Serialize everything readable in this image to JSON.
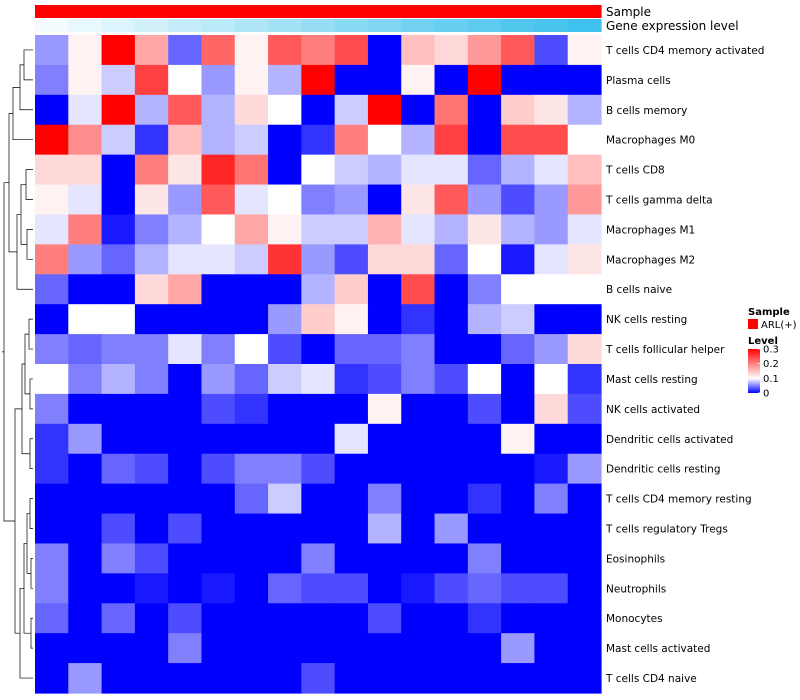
{
  "chart_data": {
    "type": "heatmap",
    "title": "",
    "annotation_rows": [
      "Sample",
      "Gene expression level"
    ],
    "rows": [
      "T cells CD4 memory activated",
      "Plasma cells",
      "B cells memory",
      "Macrophages M0",
      "T cells CD8",
      "T cells gamma delta",
      "Macrophages M1",
      "Macrophages M2",
      "B cells naive",
      "NK cells resting",
      "T cells follicular helper",
      "Mast cells resting",
      "NK cells activated",
      "Dendritic cells activated",
      "Dendritic cells resting",
      "T cells CD4 memory resting",
      "T cells regulatory  Tregs",
      "Eosinophils",
      "Neutrophils",
      "Monocytes",
      "Mast cells activated",
      "T cells CD4 naive"
    ],
    "values": [
      [
        0.06,
        0.11,
        0.3,
        0.17,
        0.04,
        0.22,
        0.11,
        0.23,
        0.2,
        0.24,
        0.0,
        0.15,
        0.13,
        0.18,
        0.23,
        0.03,
        0.11
      ],
      [
        0.05,
        0.11,
        0.08,
        0.25,
        0.1,
        0.06,
        0.11,
        0.07,
        0.3,
        0.0,
        0.0,
        0.11,
        0.0,
        0.3,
        0.0,
        0.0,
        0.0
      ],
      [
        0.0,
        0.09,
        0.3,
        0.07,
        0.23,
        0.07,
        0.13,
        0.1,
        0.0,
        0.08,
        0.3,
        0.0,
        0.21,
        0.0,
        0.14,
        0.12,
        0.07
      ],
      [
        0.3,
        0.19,
        0.08,
        0.02,
        0.15,
        0.07,
        0.08,
        0.0,
        0.02,
        0.2,
        0.1,
        0.07,
        0.25,
        0.0,
        0.24,
        0.24,
        0.1
      ],
      [
        0.13,
        0.13,
        0.0,
        0.2,
        0.12,
        0.27,
        0.21,
        0.0,
        0.1,
        0.08,
        0.07,
        0.09,
        0.09,
        0.04,
        0.07,
        0.09,
        0.15
      ],
      [
        0.11,
        0.09,
        0.0,
        0.12,
        0.06,
        0.23,
        0.09,
        0.1,
        0.05,
        0.06,
        0.0,
        0.12,
        0.23,
        0.06,
        0.03,
        0.06,
        0.18
      ],
      [
        0.09,
        0.2,
        0.01,
        0.05,
        0.07,
        0.1,
        0.17,
        0.11,
        0.08,
        0.08,
        0.16,
        0.09,
        0.07,
        0.12,
        0.07,
        0.06,
        0.09
      ],
      [
        0.2,
        0.06,
        0.04,
        0.07,
        0.09,
        0.09,
        0.08,
        0.26,
        0.06,
        0.03,
        0.13,
        0.13,
        0.04,
        0.1,
        0.01,
        0.09,
        0.12
      ],
      [
        0.04,
        0.0,
        0.0,
        0.13,
        0.17,
        0.0,
        0.0,
        0.0,
        0.07,
        0.14,
        0.0,
        0.24,
        0.0,
        0.05,
        0.1,
        0.1,
        0.1
      ],
      [
        0.0,
        0.1,
        0.1,
        0.0,
        0.0,
        0.0,
        0.0,
        0.06,
        0.14,
        0.11,
        0.0,
        0.02,
        0.0,
        0.07,
        0.08,
        0.0,
        0.0
      ],
      [
        0.05,
        0.04,
        0.05,
        0.05,
        0.09,
        0.05,
        0.1,
        0.03,
        0.0,
        0.04,
        0.04,
        0.05,
        0.0,
        0.0,
        0.04,
        0.06,
        0.13
      ],
      [
        0.1,
        0.05,
        0.07,
        0.05,
        0.0,
        0.06,
        0.04,
        0.08,
        0.09,
        0.02,
        0.03,
        0.05,
        0.03,
        0.1,
        0.0,
        0.1,
        0.02
      ],
      [
        0.05,
        0.0,
        0.0,
        0.0,
        0.0,
        0.03,
        0.02,
        0.0,
        0.0,
        0.0,
        0.11,
        0.0,
        0.0,
        0.03,
        0.0,
        0.13,
        0.03
      ],
      [
        0.02,
        0.06,
        0.0,
        0.0,
        0.0,
        0.0,
        0.0,
        0.0,
        0.0,
        0.09,
        0.0,
        0.0,
        0.0,
        0.0,
        0.11,
        0.0,
        0.0
      ],
      [
        0.02,
        0.0,
        0.04,
        0.03,
        0.0,
        0.03,
        0.05,
        0.05,
        0.03,
        0.0,
        0.0,
        0.0,
        0.0,
        0.0,
        0.0,
        0.01,
        0.06
      ],
      [
        0.0,
        0.0,
        0.0,
        0.0,
        0.0,
        0.0,
        0.04,
        0.08,
        0.0,
        0.0,
        0.05,
        0.0,
        0.0,
        0.02,
        0.0,
        0.05,
        0.0
      ],
      [
        0.0,
        0.0,
        0.03,
        0.0,
        0.03,
        0.0,
        0.0,
        0.0,
        0.0,
        0.0,
        0.07,
        0.0,
        0.06,
        0.0,
        0.0,
        0.0,
        0.0
      ],
      [
        0.05,
        0.0,
        0.05,
        0.03,
        0.0,
        0.0,
        0.0,
        0.0,
        0.05,
        0.0,
        0.0,
        0.0,
        0.0,
        0.05,
        0.0,
        0.0,
        0.0
      ],
      [
        0.05,
        0.0,
        0.0,
        0.01,
        0.0,
        0.01,
        0.0,
        0.04,
        0.03,
        0.03,
        0.0,
        0.01,
        0.03,
        0.04,
        0.03,
        0.03,
        0.0
      ],
      [
        0.04,
        0.0,
        0.04,
        0.0,
        0.03,
        0.0,
        0.0,
        0.0,
        0.0,
        0.0,
        0.03,
        0.0,
        0.0,
        0.02,
        0.0,
        0.0,
        0.0
      ],
      [
        0.0,
        0.0,
        0.0,
        0.0,
        0.05,
        0.0,
        0.0,
        0.0,
        0.0,
        0.0,
        0.0,
        0.0,
        0.0,
        0.0,
        0.06,
        0.0,
        0.0
      ],
      [
        0.0,
        0.06,
        0.0,
        0.0,
        0.0,
        0.0,
        0.0,
        0.0,
        0.03,
        0.0,
        0.0,
        0.0,
        0.0,
        0.0,
        0.0,
        0.0,
        0.0
      ]
    ],
    "sample_annotation": [
      "ARL(+)",
      "ARL(+)",
      "ARL(+)",
      "ARL(+)",
      "ARL(+)",
      "ARL(+)",
      "ARL(+)",
      "ARL(+)",
      "ARL(+)",
      "ARL(+)",
      "ARL(+)",
      "ARL(+)",
      "ARL(+)",
      "ARL(+)",
      "ARL(+)",
      "ARL(+)",
      "ARL(+)"
    ],
    "gene_expression_level": [
      0.05,
      0.12,
      0.18,
      0.24,
      0.3,
      0.36,
      0.42,
      0.48,
      0.54,
      0.6,
      0.66,
      0.72,
      0.78,
      0.84,
      0.9,
      0.95,
      1.0
    ],
    "color_scale": {
      "min": 0,
      "mid": 0.1,
      "max": 0.3,
      "low_color": "#0000ff",
      "mid_color": "#ffffff",
      "high_color": "#ff0000"
    },
    "legend": {
      "sample_title": "Sample",
      "sample_item": "ARL(+)",
      "sample_color": "#ff0000",
      "level_title": "Level",
      "level_ticks": [
        "0.3",
        "0.2",
        "0.1",
        "0"
      ],
      "level_tick_values": [
        0.3,
        0.2,
        0.1,
        0
      ]
    },
    "annotation_colors": {
      "sample": "#ff0000",
      "expr_low": "#ffffff",
      "expr_high": "#3ec1ec"
    },
    "row_dendrogram": true
  }
}
